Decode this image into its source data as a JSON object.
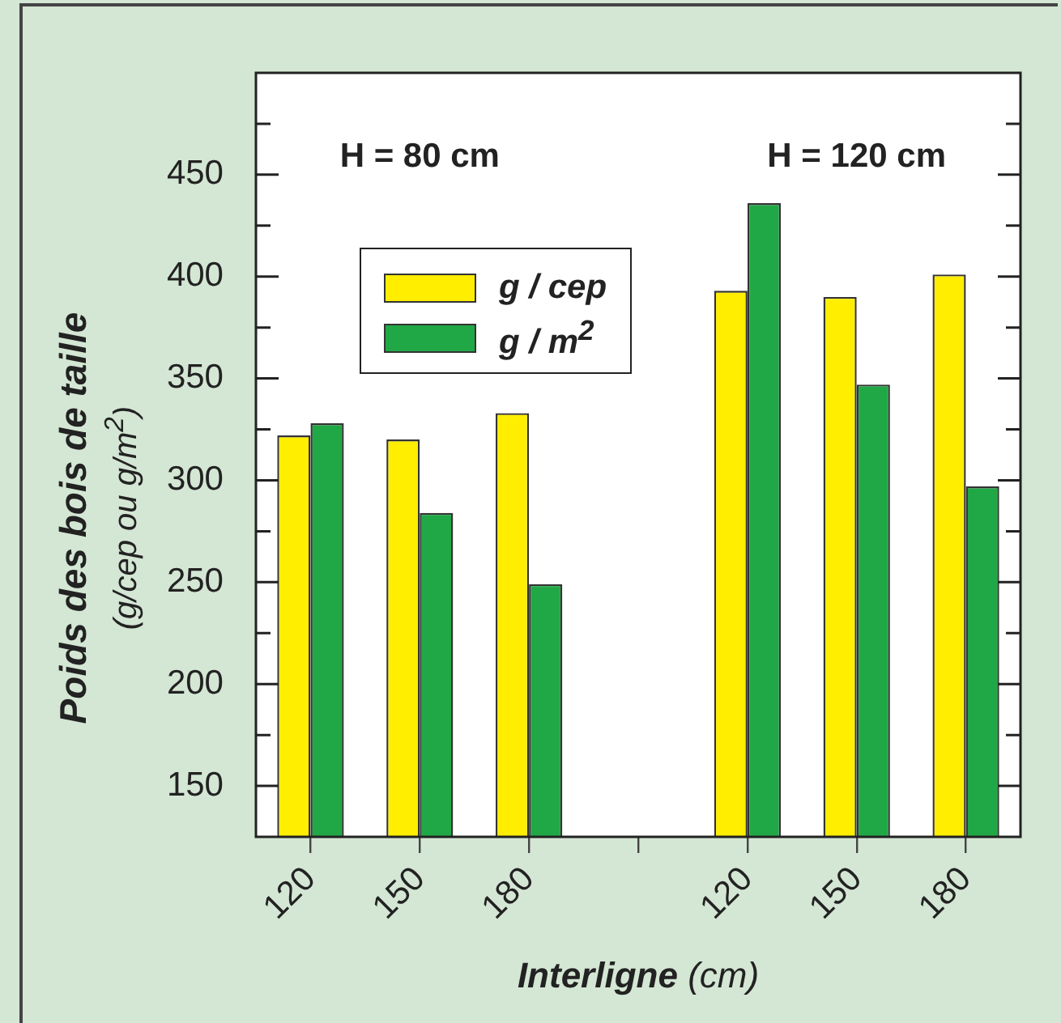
{
  "chart_data": {
    "type": "bar",
    "categories": [
      "120",
      "150",
      "180",
      null,
      "120",
      "150",
      "180"
    ],
    "series": [
      {
        "name": "g / cep",
        "color": "#ffee00",
        "values": [
          322,
          320,
          333,
          null,
          393,
          390,
          401
        ]
      },
      {
        "name": "g / m$^{2}$",
        "color": "#21a846",
        "values": [
          328,
          284,
          249,
          null,
          436,
          347,
          297
        ]
      }
    ],
    "xlabel": "Interligne (cm)",
    "ylabel": "Poids des bois de taille (g/cep ou g/m$^{2}$)",
    "ylim": [
      125,
      500
    ],
    "yticks": [
      150,
      {
        "value": 175,
        "label": null
      },
      200,
      {
        "value": 225,
        "label": null
      },
      250,
      {
        "value": 275,
        "label": null
      },
      300,
      {
        "value": 325,
        "label": null
      },
      350,
      {
        "value": 375,
        "label": null
      },
      400,
      {
        "value": 425,
        "label": null
      },
      450,
      {
        "value": 475,
        "label": null
      }
    ],
    "annotations": [
      "H = 80 cm",
      "H = 120 cm"
    ],
    "legend": "top left",
    "grid": false
  }
}
